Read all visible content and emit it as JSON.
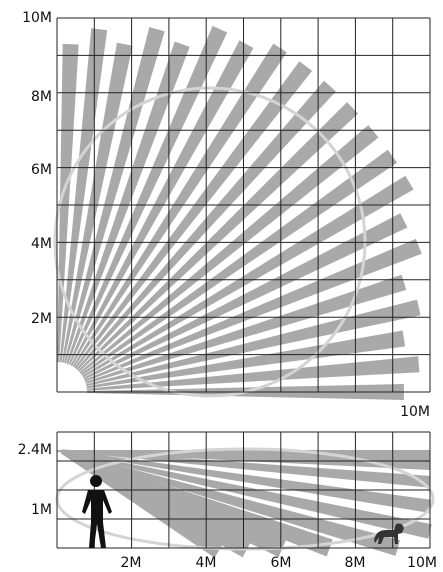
{
  "top_view": {
    "y_labels": [
      "10M",
      "8M",
      "6M",
      "4M",
      "2M"
    ],
    "x_label": "10M"
  },
  "side_view": {
    "y_labels": [
      "2.4M",
      "1M"
    ],
    "x_labels": [
      "2M",
      "4M",
      "6M",
      "8M",
      "10M"
    ]
  }
}
